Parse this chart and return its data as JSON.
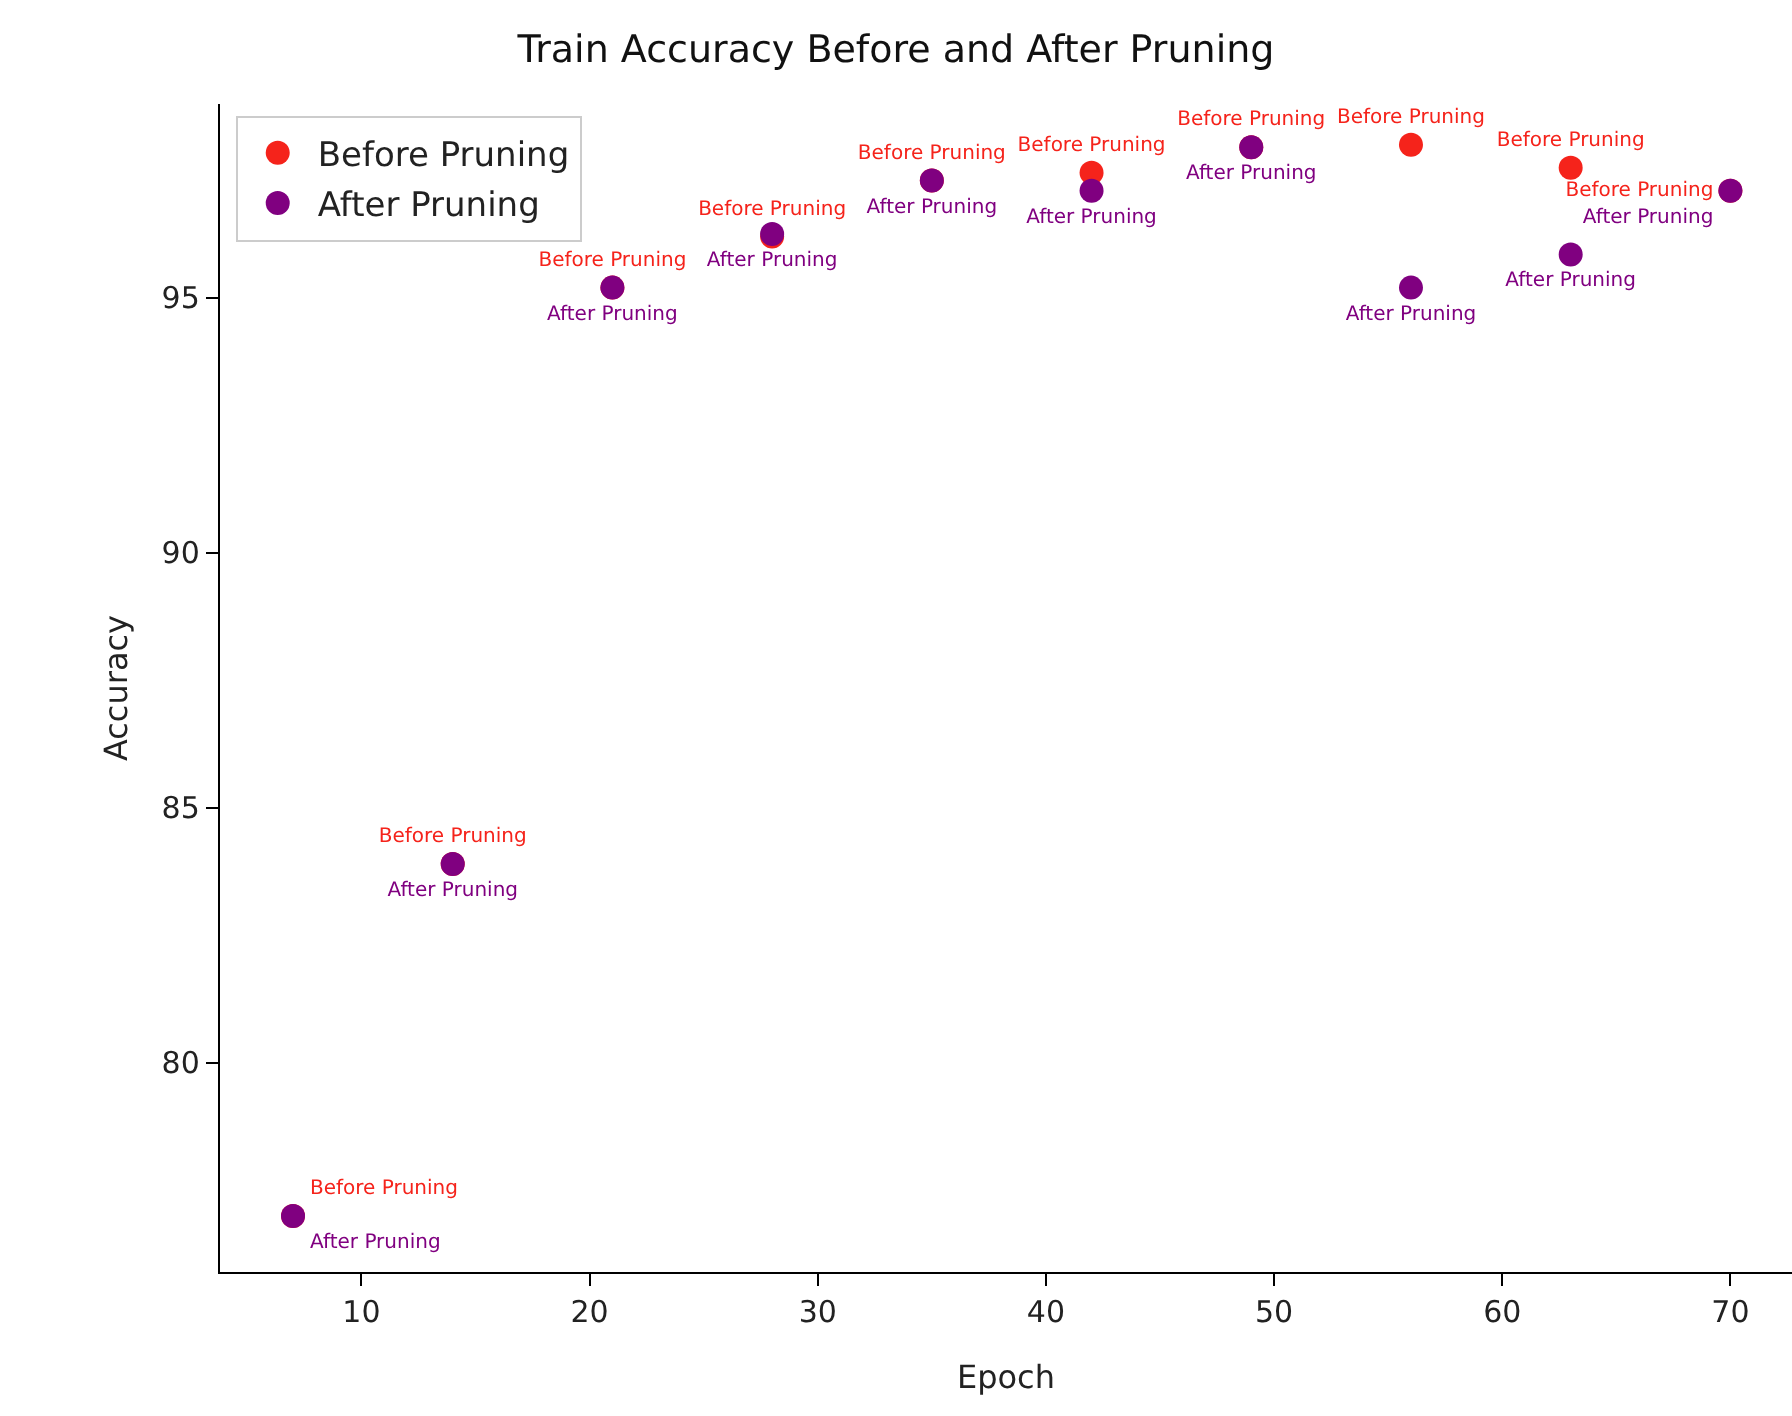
{
  "chart_data": {
    "type": "scatter",
    "title": "Train Accuracy Before and After Pruning",
    "xlabel": "Epoch",
    "ylabel": "Accuracy",
    "x": [
      7,
      14,
      21,
      28,
      35,
      42,
      49,
      56,
      63,
      70
    ],
    "series": [
      {
        "name": "Before Pruning",
        "color": "#f5231b",
        "values": [
          77.0,
          83.9,
          95.2,
          96.2,
          97.3,
          97.45,
          97.95,
          98.0,
          97.55,
          97.1
        ],
        "value_labels": [
          "Before Pruning",
          "Before Pruning",
          "Before Pruning",
          "Before Pruning",
          "Before Pruning",
          "Before Pruning",
          "Before Pruning",
          "Before Pruning",
          "Before Pruning",
          "Before Pruning"
        ]
      },
      {
        "name": "After Pruning",
        "color": "#800080",
        "values": [
          77.0,
          83.9,
          95.2,
          96.25,
          97.3,
          97.1,
          97.95,
          95.2,
          95.85,
          97.1
        ],
        "value_labels": [
          "After Pruning",
          "After Pruning",
          "After Pruning",
          "After Pruning",
          "After Pruning",
          "After Pruning",
          "After Pruning",
          "After Pruning",
          "After Pruning",
          "After Pruning"
        ]
      }
    ],
    "xlim": [
      3.8,
      72.7
    ],
    "xticks": [
      10,
      20,
      30,
      40,
      50,
      60,
      70
    ],
    "ylim": [
      75.9,
      98.8
    ],
    "yticks": [
      80,
      85,
      90,
      95
    ],
    "grid": false,
    "legend": "top left",
    "marker": "circle"
  }
}
